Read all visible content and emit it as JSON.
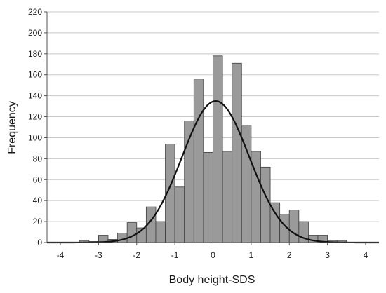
{
  "chart_data": {
    "type": "bar",
    "subtype": "histogram",
    "title": "",
    "xlabel": "Body height-SDS",
    "ylabel": "Frequency",
    "xlim": [
      -4.35,
      4.35
    ],
    "ylim": [
      0,
      220
    ],
    "grid": "horizontal",
    "bin_width": 0.25,
    "x_ticks": [
      -4,
      -3,
      -2,
      -1,
      0,
      1,
      2,
      3,
      4
    ],
    "y_ticks": [
      0,
      20,
      40,
      60,
      80,
      100,
      120,
      140,
      160,
      180,
      200,
      220
    ],
    "bins": [
      {
        "x0": -3.5,
        "x1": -3.25,
        "value": 2
      },
      {
        "x0": -3.25,
        "x1": -3.0,
        "value": 1
      },
      {
        "x0": -3.0,
        "x1": -2.75,
        "value": 7
      },
      {
        "x0": -2.75,
        "x1": -2.5,
        "value": 3
      },
      {
        "x0": -2.5,
        "x1": -2.25,
        "value": 9
      },
      {
        "x0": -2.25,
        "x1": -2.0,
        "value": 19
      },
      {
        "x0": -2.0,
        "x1": -1.75,
        "value": 14
      },
      {
        "x0": -1.75,
        "x1": -1.5,
        "value": 34
      },
      {
        "x0": -1.5,
        "x1": -1.25,
        "value": 20
      },
      {
        "x0": -1.25,
        "x1": -1.0,
        "value": 94
      },
      {
        "x0": -1.0,
        "x1": -0.75,
        "value": 53
      },
      {
        "x0": -0.75,
        "x1": -0.5,
        "value": 116
      },
      {
        "x0": -0.5,
        "x1": -0.25,
        "value": 156
      },
      {
        "x0": -0.25,
        "x1": 0.0,
        "value": 86
      },
      {
        "x0": 0.0,
        "x1": 0.25,
        "value": 178
      },
      {
        "x0": 0.25,
        "x1": 0.5,
        "value": 87
      },
      {
        "x0": 0.5,
        "x1": 0.75,
        "value": 171
      },
      {
        "x0": 0.75,
        "x1": 1.0,
        "value": 112
      },
      {
        "x0": 1.0,
        "x1": 1.25,
        "value": 87
      },
      {
        "x0": 1.25,
        "x1": 1.5,
        "value": 72
      },
      {
        "x0": 1.5,
        "x1": 1.75,
        "value": 38
      },
      {
        "x0": 1.75,
        "x1": 2.0,
        "value": 27
      },
      {
        "x0": 2.0,
        "x1": 2.25,
        "value": 31
      },
      {
        "x0": 2.25,
        "x1": 2.5,
        "value": 20
      },
      {
        "x0": 2.5,
        "x1": 2.75,
        "value": 7
      },
      {
        "x0": 2.75,
        "x1": 3.0,
        "value": 7
      },
      {
        "x0": 3.0,
        "x1": 3.25,
        "value": 2
      },
      {
        "x0": 3.25,
        "x1": 3.5,
        "value": 2
      }
    ],
    "normal_curve": {
      "mean": 0.07,
      "sd": 0.88,
      "peak": 135
    },
    "colors": {
      "bar_fill": "#9a9a9a",
      "bar_stroke": "#3c3c3c",
      "curve": "#111111",
      "grid": "#c8c8c8",
      "axis": "#555555"
    }
  }
}
